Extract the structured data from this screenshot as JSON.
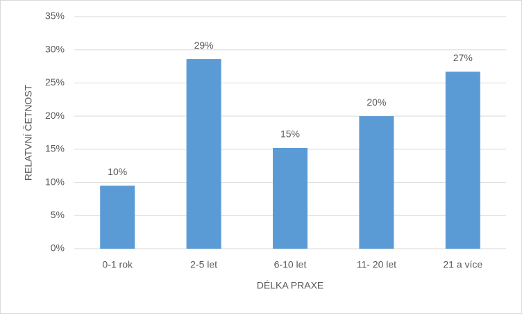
{
  "chart_data": {
    "type": "bar",
    "x_label": "DÉLKA PRAXE",
    "y_label": "RELATVNÍ ČETNOST",
    "categories": [
      "0-1 rok",
      "2-5 let",
      "6-10 let",
      "11- 20 let",
      "21 a více"
    ],
    "values": [
      9.5,
      28.6,
      15.2,
      20.0,
      26.7
    ],
    "value_labels": [
      "10%",
      "29%",
      "15%",
      "20%",
      "27%"
    ],
    "color": "#5b9bd5",
    "ylim": [
      0,
      35
    ],
    "yticks": [
      {
        "value": 0,
        "label": "0%"
      },
      {
        "value": 5,
        "label": "5%"
      },
      {
        "value": 10,
        "label": "10%"
      },
      {
        "value": 15,
        "label": "15%"
      },
      {
        "value": 20,
        "label": "20%"
      },
      {
        "value": 25,
        "label": "25%"
      },
      {
        "value": 30,
        "label": "30%"
      },
      {
        "value": 35,
        "label": "35%"
      }
    ],
    "grid": true
  }
}
